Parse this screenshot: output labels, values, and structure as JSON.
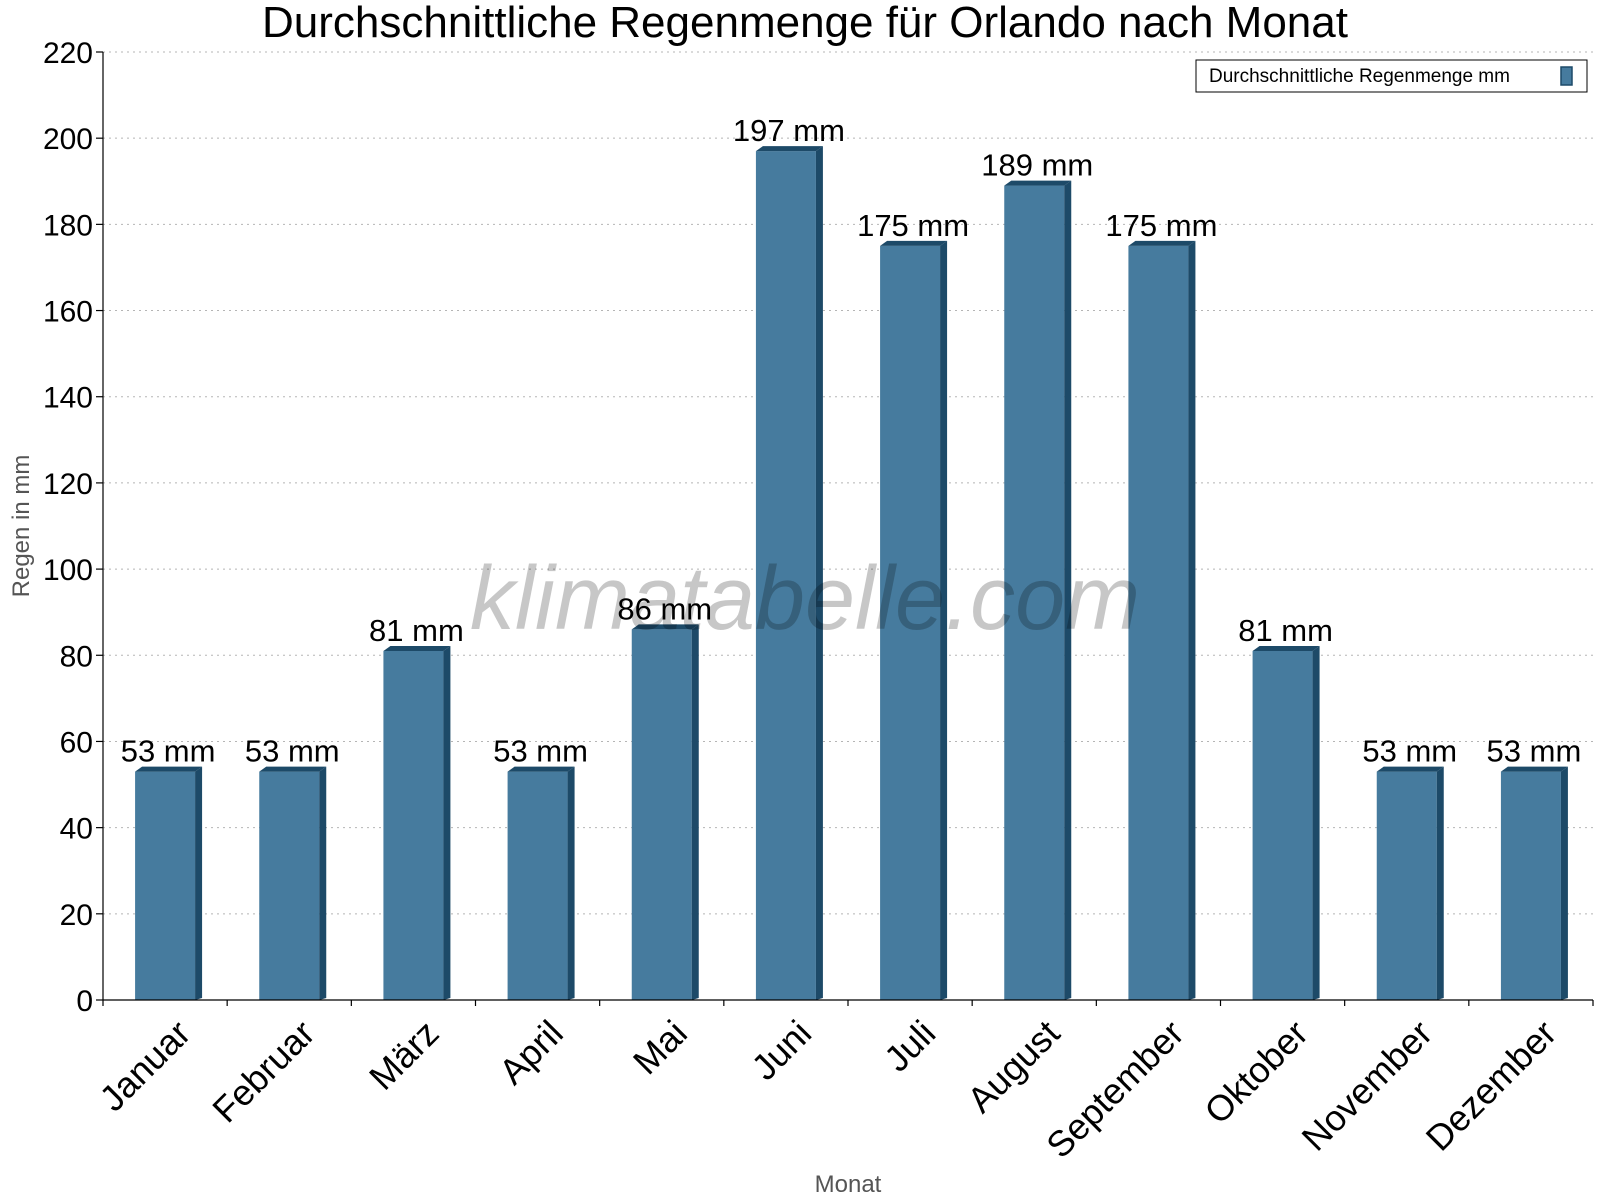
{
  "chart_data": {
    "type": "bar",
    "title": "Durchschnittliche Regenmenge für Orlando nach Monat",
    "xlabel": "Monat",
    "ylabel": "Regen in mm",
    "ylim": [
      0,
      220
    ],
    "ytick_step": 20,
    "grid": true,
    "legend_position": "top-right",
    "categories": [
      "Januar",
      "Februar",
      "März",
      "April",
      "Mai",
      "Juni",
      "Juli",
      "August",
      "September",
      "Oktober",
      "November",
      "Dezember"
    ],
    "series": [
      {
        "name": "Durchschnittliche Regenmenge mm",
        "values": [
          53,
          53,
          81,
          53,
          86,
          197,
          175,
          189,
          175,
          81,
          53,
          53
        ],
        "data_labels": [
          "53 mm",
          "53 mm",
          "81 mm",
          "53 mm",
          "86 mm",
          "197 mm",
          "175 mm",
          "189 mm",
          "175 mm",
          "81 mm",
          "53 mm",
          "53 mm"
        ],
        "color": "#467b9e",
        "side_color": "#1d4a68"
      }
    ]
  },
  "watermark": "klimatabelle.com"
}
